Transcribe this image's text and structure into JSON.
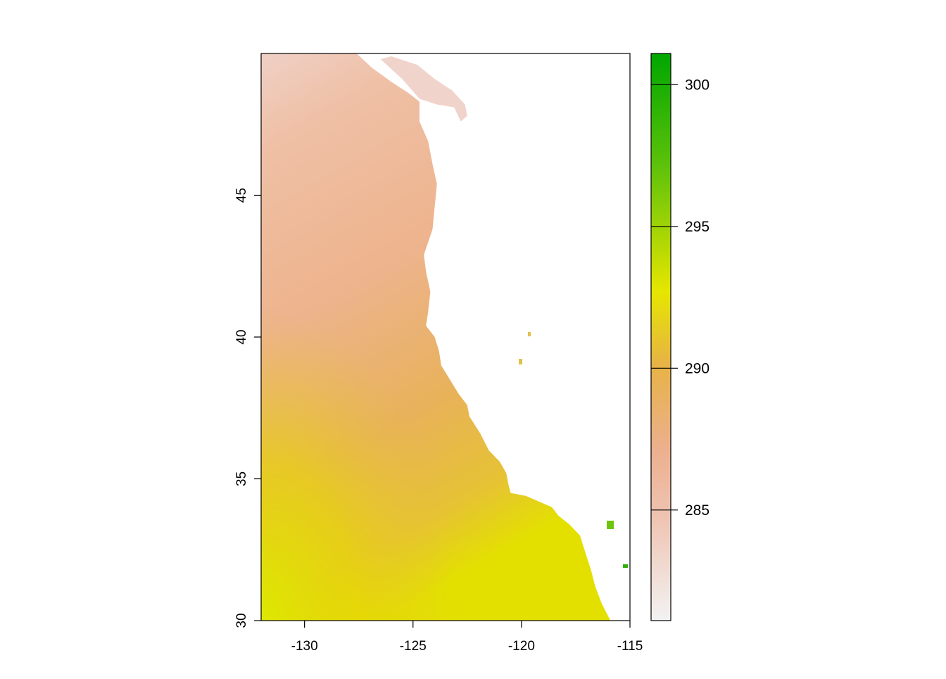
{
  "map": {
    "type": "raster",
    "x_ticks": [
      "-130",
      "-125",
      "-120",
      "-115"
    ],
    "y_ticks": [
      "30",
      "35",
      "40",
      "45"
    ],
    "x_tick_values": [
      -130,
      -125,
      -120,
      -115
    ],
    "y_tick_values": [
      30,
      35,
      40,
      45
    ],
    "xlim": [
      -132,
      -115
    ],
    "ylim": [
      30,
      50
    ],
    "coastline": [
      [
        -128.9,
        50
      ],
      [
        -127.6,
        50
      ],
      [
        -126.9,
        49.5
      ],
      [
        -126.0,
        49.0
      ],
      [
        -125.2,
        48.6
      ],
      [
        -124.7,
        48.3
      ],
      [
        -124.7,
        47.6
      ],
      [
        -124.3,
        46.9
      ],
      [
        -124.1,
        46.1
      ],
      [
        -123.9,
        45.4
      ],
      [
        -124.0,
        44.6
      ],
      [
        -124.1,
        43.8
      ],
      [
        -124.5,
        42.9
      ],
      [
        -124.4,
        42.3
      ],
      [
        -124.2,
        41.6
      ],
      [
        -124.3,
        40.9
      ],
      [
        -124.4,
        40.4
      ],
      [
        -124.0,
        40.0
      ],
      [
        -123.8,
        39.5
      ],
      [
        -123.7,
        39.0
      ],
      [
        -123.3,
        38.5
      ],
      [
        -122.9,
        38.0
      ],
      [
        -122.5,
        37.6
      ],
      [
        -122.4,
        37.2
      ],
      [
        -121.9,
        36.6
      ],
      [
        -121.5,
        36.0
      ],
      [
        -121.0,
        35.6
      ],
      [
        -120.7,
        35.2
      ],
      [
        -120.6,
        34.8
      ],
      [
        -120.5,
        34.5
      ],
      [
        -119.8,
        34.4
      ],
      [
        -119.2,
        34.2
      ],
      [
        -118.6,
        34.0
      ],
      [
        -118.3,
        33.7
      ],
      [
        -117.8,
        33.4
      ],
      [
        -117.3,
        33.0
      ],
      [
        -117.1,
        32.5
      ],
      [
        -116.8,
        31.8
      ],
      [
        -116.6,
        31.2
      ],
      [
        -116.3,
        30.6
      ],
      [
        -115.9,
        30.0
      ]
    ],
    "salish_sea": [
      [
        -126.0,
        49.9
      ],
      [
        -124.8,
        49.6
      ],
      [
        -124.0,
        49.1
      ],
      [
        -123.2,
        48.7
      ],
      [
        -122.6,
        48.2
      ],
      [
        -122.5,
        47.8
      ],
      [
        -122.8,
        47.6
      ],
      [
        -123.1,
        48.1
      ],
      [
        -123.9,
        48.2
      ],
      [
        -124.7,
        48.4
      ],
      [
        -125.5,
        49.1
      ],
      [
        -126.5,
        49.8
      ]
    ],
    "color_stops": [
      "#f2f2f2",
      "#efc4b2",
      "#ecb08f",
      "#e7b246",
      "#e6e600",
      "#5ec20a",
      "#00a600"
    ]
  },
  "legend": {
    "ticks": [
      "285",
      "290",
      "295",
      "300"
    ],
    "tick_values": [
      285,
      290,
      295,
      300
    ],
    "range": [
      281.1,
      301.1
    ]
  }
}
